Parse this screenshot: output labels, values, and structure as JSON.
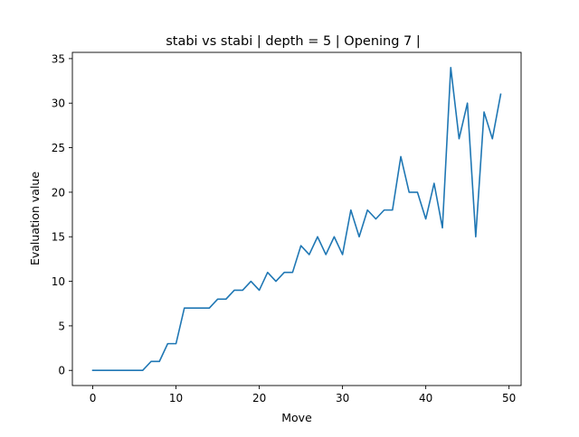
{
  "chart_data": {
    "type": "line",
    "title": "stabi vs stabi | depth = 5 | Opening 7 |",
    "xlabel": "Move",
    "ylabel": "Evaluation value",
    "xlim": [
      -2.45,
      51.45
    ],
    "ylim": [
      -1.7,
      35.7
    ],
    "xticks": [
      0,
      10,
      20,
      30,
      40,
      50
    ],
    "yticks": [
      0,
      5,
      10,
      15,
      20,
      25,
      30,
      35
    ],
    "grid": false,
    "series": [
      {
        "color": "#1f77b4",
        "x": [
          0,
          1,
          2,
          3,
          4,
          5,
          6,
          7,
          8,
          9,
          10,
          11,
          12,
          13,
          14,
          15,
          16,
          17,
          18,
          19,
          20,
          21,
          22,
          23,
          24,
          25,
          26,
          27,
          28,
          29,
          30,
          31,
          32,
          33,
          34,
          35,
          36,
          37,
          38,
          39,
          40,
          41,
          42,
          43,
          44,
          45,
          46,
          47,
          48,
          49
        ],
        "y": [
          0,
          0,
          0,
          0,
          0,
          0,
          0,
          1,
          1,
          3,
          3,
          7,
          7,
          7,
          7,
          8,
          8,
          9,
          9,
          10,
          9,
          11,
          10,
          11,
          11,
          14,
          13,
          15,
          13,
          15,
          13,
          18,
          15,
          18,
          17,
          18,
          18,
          24,
          20,
          20,
          17,
          21,
          16,
          34,
          26,
          30,
          15,
          29,
          26,
          31
        ]
      }
    ]
  }
}
